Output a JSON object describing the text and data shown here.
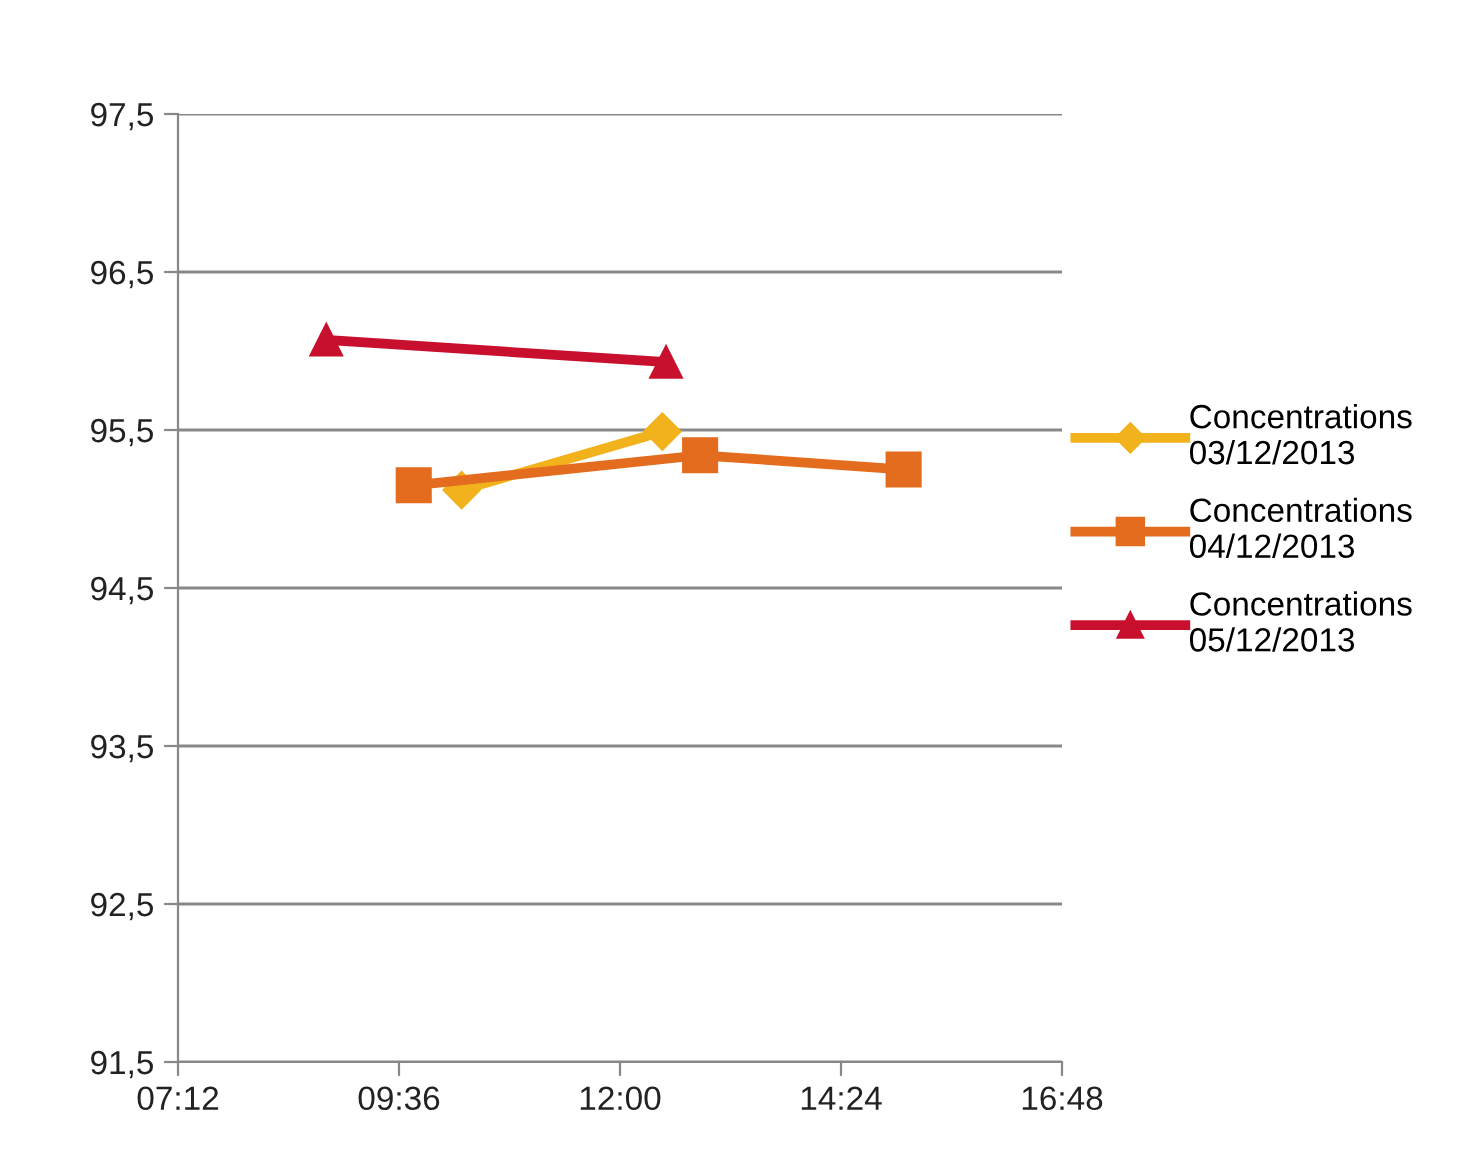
{
  "chart_data": {
    "type": "line",
    "series": [
      {
        "name": "Concentrations 03/12/2013",
        "color": "#f2b21c",
        "marker": "diamond",
        "x": [
          10.28,
          12.46
        ],
        "values": [
          95.12,
          95.49
        ]
      },
      {
        "name": "Concentrations 04/12/2013",
        "color": "#e46c1f",
        "marker": "square",
        "x": [
          9.76,
          12.87,
          15.08
        ],
        "values": [
          95.15,
          95.34,
          95.25
        ]
      },
      {
        "name": "Concentrations 05/12/2013",
        "color": "#c8102e",
        "marker": "triangle",
        "x": [
          8.81,
          12.5
        ],
        "values": [
          96.07,
          95.93
        ]
      }
    ],
    "xlim": [
      7.2,
      16.8
    ],
    "xticks": [
      {
        "value": 7.2,
        "label": "07:12"
      },
      {
        "value": 9.6,
        "label": "09:36"
      },
      {
        "value": 12,
        "label": "12:00"
      },
      {
        "value": 14.4,
        "label": "14:24"
      },
      {
        "value": 16.8,
        "label": "16:48"
      }
    ],
    "ylim": [
      91.5,
      97.5
    ],
    "yticks": [
      {
        "value": 91.5,
        "label": "91,5"
      },
      {
        "value": 92.5,
        "label": "92,5"
      },
      {
        "value": 93.5,
        "label": "93,5"
      },
      {
        "value": 94.5,
        "label": "94,5"
      },
      {
        "value": 95.5,
        "label": "95,5"
      },
      {
        "value": 96.5,
        "label": "96,5"
      },
      {
        "value": 97.5,
        "label": "97,5"
      }
    ],
    "grid": "y",
    "legend": "right",
    "line_style": "solid"
  }
}
